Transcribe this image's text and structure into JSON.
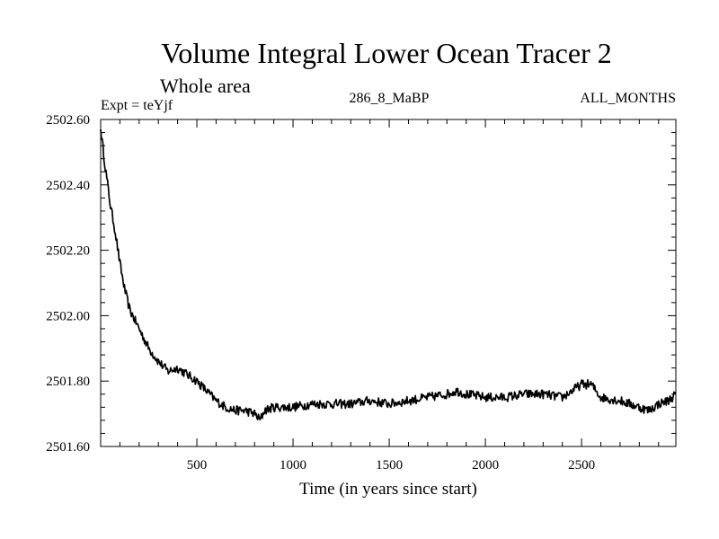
{
  "chart_data": {
    "type": "line",
    "title": "Volume Integral Lower Ocean Tracer 2",
    "subtitle": "Whole area",
    "expt_label": "Expt = teYjf",
    "center_label": "286_8_MaBP",
    "right_label": "ALL_MONTHS",
    "xlabel": "Time (in years since start)",
    "ylabel": "",
    "xlim": [
      0,
      2990
    ],
    "ylim": [
      2501.6,
      2502.6
    ],
    "x_ticks": [
      500,
      1000,
      1500,
      2000,
      2500
    ],
    "x_tick_labels": [
      "500",
      "1000",
      "1500",
      "2000",
      "2500"
    ],
    "x_minor_step": 100,
    "y_ticks": [
      2501.6,
      2501.8,
      2502.0,
      2502.2,
      2502.4,
      2502.6
    ],
    "y_tick_labels": [
      "2501.60",
      "2501.80",
      "2502.00",
      "2502.20",
      "2502.40",
      "2502.60"
    ],
    "y_minor_step": 0.04,
    "grid": false,
    "series": [
      {
        "name": "Volume Integral Lower Ocean Tracer 2",
        "color": "#000000",
        "x": [
          0,
          25,
          50,
          75,
          100,
          125,
          150,
          175,
          200,
          250,
          300,
          350,
          400,
          450,
          500,
          550,
          600,
          650,
          700,
          750,
          800,
          830,
          850,
          900,
          1000,
          1100,
          1200,
          1300,
          1400,
          1500,
          1600,
          1700,
          1800,
          1850,
          1900,
          2000,
          2100,
          2200,
          2300,
          2400,
          2450,
          2500,
          2550,
          2600,
          2700,
          2800,
          2850,
          2900,
          2950,
          2990
        ],
        "values": [
          2502.57,
          2502.45,
          2502.34,
          2502.26,
          2502.16,
          2502.08,
          2502.02,
          2501.99,
          2501.96,
          2501.9,
          2501.86,
          2501.83,
          2501.84,
          2501.82,
          2501.8,
          2501.77,
          2501.74,
          2501.72,
          2501.71,
          2501.71,
          2501.7,
          2501.68,
          2501.71,
          2501.72,
          2501.72,
          2501.73,
          2501.73,
          2501.73,
          2501.74,
          2501.73,
          2501.74,
          2501.75,
          2501.76,
          2501.77,
          2501.76,
          2501.75,
          2501.75,
          2501.76,
          2501.76,
          2501.75,
          2501.77,
          2501.79,
          2501.79,
          2501.75,
          2501.74,
          2501.72,
          2501.71,
          2501.73,
          2501.74,
          2501.76
        ]
      }
    ]
  }
}
